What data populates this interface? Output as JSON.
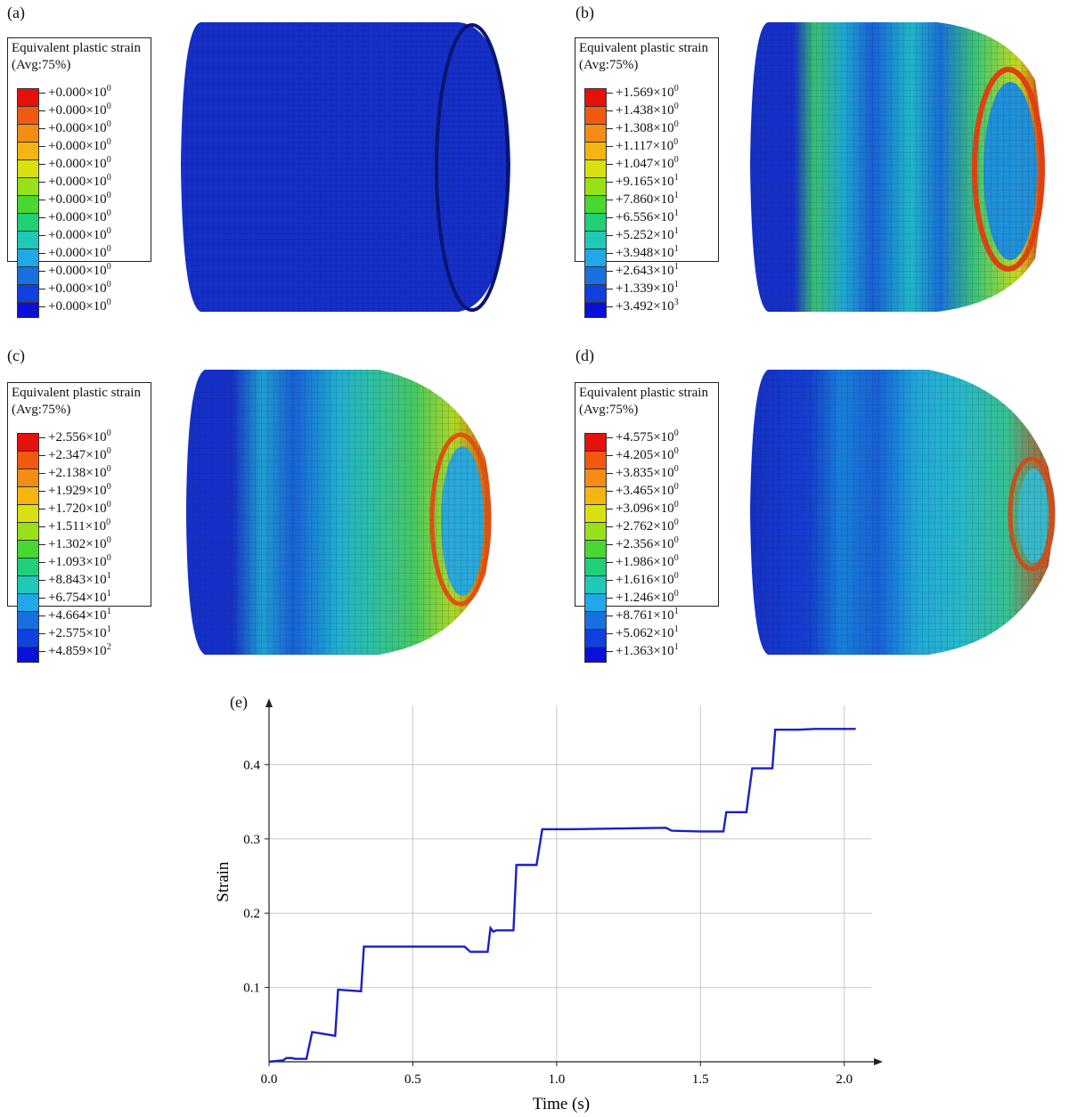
{
  "panels": [
    {
      "label": "(a)",
      "legend_title": "Equivalent plastic strain",
      "legend_sub": "(Avg:75%)",
      "ticks": [
        {
          "m": "+0.000",
          "e": "0"
        },
        {
          "m": "+0.000",
          "e": "0"
        },
        {
          "m": "+0.000",
          "e": "0"
        },
        {
          "m": "+0.000",
          "e": "0"
        },
        {
          "m": "+0.000",
          "e": "0"
        },
        {
          "m": "+0.000",
          "e": "0"
        },
        {
          "m": "+0.000",
          "e": "0"
        },
        {
          "m": "+0.000",
          "e": "0"
        },
        {
          "m": "+0.000",
          "e": "0"
        },
        {
          "m": "+0.000",
          "e": "0"
        },
        {
          "m": "+0.000",
          "e": "0"
        },
        {
          "m": "+0.000",
          "e": "0"
        },
        {
          "m": "+0.000",
          "e": "0"
        }
      ]
    },
    {
      "label": "(b)",
      "legend_title": "Equivalent plastic strain",
      "legend_sub": "(Avg:75%)",
      "ticks": [
        {
          "m": "+1.569",
          "e": "0"
        },
        {
          "m": "+1.438",
          "e": "0"
        },
        {
          "m": "+1.308",
          "e": "0"
        },
        {
          "m": "+1.117",
          "e": "0"
        },
        {
          "m": "+1.047",
          "e": "0"
        },
        {
          "m": "+9.165",
          "e": "1"
        },
        {
          "m": "+7.860",
          "e": "1"
        },
        {
          "m": "+6.556",
          "e": "1"
        },
        {
          "m": "+5.252",
          "e": "1"
        },
        {
          "m": "+3.948",
          "e": "1"
        },
        {
          "m": "+2.643",
          "e": "1"
        },
        {
          "m": "+1.339",
          "e": "1"
        },
        {
          "m": "+3.492",
          "e": "3"
        }
      ]
    },
    {
      "label": "(c)",
      "legend_title": "Equivalent plastic strain",
      "legend_sub": "(Avg:75%)",
      "ticks": [
        {
          "m": "+2.556",
          "e": "0"
        },
        {
          "m": "+2.347",
          "e": "0"
        },
        {
          "m": "+2.138",
          "e": "0"
        },
        {
          "m": "+1.929",
          "e": "0"
        },
        {
          "m": "+1.720",
          "e": "0"
        },
        {
          "m": "+1.511",
          "e": "0"
        },
        {
          "m": "+1.302",
          "e": "0"
        },
        {
          "m": "+1.093",
          "e": "0"
        },
        {
          "m": "+8.843",
          "e": "1"
        },
        {
          "m": "+6.754",
          "e": "1"
        },
        {
          "m": "+4.664",
          "e": "1"
        },
        {
          "m": "+2.575",
          "e": "1"
        },
        {
          "m": "+4.859",
          "e": "2"
        }
      ]
    },
    {
      "label": "(d)",
      "legend_title": "Equivalent plastic strain",
      "legend_sub": "(Avg:75%)",
      "ticks": [
        {
          "m": "+4.575",
          "e": "0"
        },
        {
          "m": "+4.205",
          "e": "0"
        },
        {
          "m": "+3.835",
          "e": "0"
        },
        {
          "m": "+3.465",
          "e": "0"
        },
        {
          "m": "+3.096",
          "e": "0"
        },
        {
          "m": "+2.762",
          "e": "0"
        },
        {
          "m": "+2.356",
          "e": "0"
        },
        {
          "m": "+1.986",
          "e": "0"
        },
        {
          "m": "+1.616",
          "e": "0"
        },
        {
          "m": "+1.246",
          "e": "0"
        },
        {
          "m": "+8.761",
          "e": "1"
        },
        {
          "m": "+5.062",
          "e": "1"
        },
        {
          "m": "+1.363",
          "e": "1"
        }
      ]
    }
  ],
  "legend_colors": [
    "#e8100a",
    "#f05a10",
    "#f58c15",
    "#f5b510",
    "#d8e010",
    "#98e018",
    "#48d830",
    "#20d078",
    "#20c8b8",
    "#20a8e8",
    "#1870e0",
    "#1040e0",
    "#0a10d8"
  ],
  "chart_label": "(e)",
  "chart_data": {
    "type": "line",
    "title": "",
    "xlabel": "Time (s)",
    "ylabel": "Strain",
    "xlim": [
      0,
      2.1
    ],
    "ylim": [
      0,
      0.47
    ],
    "xticks": [
      0.0,
      0.5,
      1.0,
      1.5,
      2.0
    ],
    "xtick_labels": [
      "0.0",
      "0.5",
      "1.0",
      "1.5",
      "2.0"
    ],
    "yticks": [
      0.1,
      0.2,
      0.3,
      0.4
    ],
    "ytick_labels": [
      "0.1",
      "0.2",
      "0.3",
      "0.4"
    ],
    "grid": true,
    "line_color": "#1a1fc8",
    "series": [
      {
        "x": [
          0.0,
          0.05,
          0.06,
          0.08,
          0.09,
          0.13,
          0.15,
          0.23,
          0.24,
          0.32,
          0.33,
          0.68,
          0.7,
          0.76,
          0.77,
          0.78,
          0.79,
          0.85,
          0.86,
          0.93,
          0.95,
          1.05,
          1.38,
          1.4,
          1.5,
          1.58,
          1.59,
          1.66,
          1.68,
          1.75,
          1.76,
          1.84,
          1.9,
          2.04
        ],
        "y": [
          0.0,
          0.002,
          0.005,
          0.005,
          0.004,
          0.004,
          0.04,
          0.035,
          0.097,
          0.095,
          0.155,
          0.155,
          0.148,
          0.148,
          0.18,
          0.175,
          0.177,
          0.177,
          0.265,
          0.265,
          0.313,
          0.313,
          0.315,
          0.311,
          0.31,
          0.31,
          0.336,
          0.336,
          0.395,
          0.395,
          0.447,
          0.447,
          0.448,
          0.448
        ]
      }
    ]
  }
}
